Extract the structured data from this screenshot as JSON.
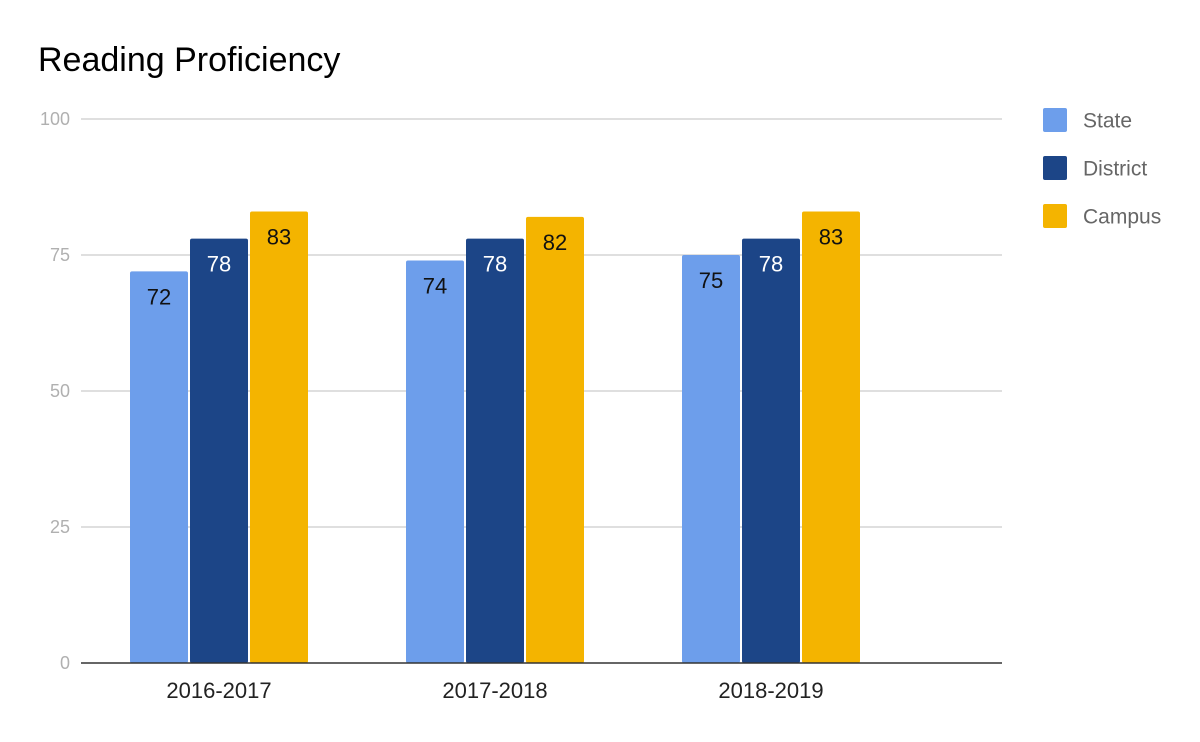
{
  "chart_data": {
    "type": "bar",
    "title": "Reading Proficiency",
    "xlabel": "",
    "ylabel": "",
    "categories": [
      "2016-2017",
      "2017-2018",
      "2018-2019"
    ],
    "series": [
      {
        "name": "State",
        "values": [
          72,
          74,
          75
        ],
        "color": "#6d9eeb",
        "label_color": "#111111"
      },
      {
        "name": "District",
        "values": [
          78,
          78,
          78
        ],
        "color": "#1c4587",
        "label_color": "#ffffff"
      },
      {
        "name": "Campus",
        "values": [
          83,
          82,
          83
        ],
        "color": "#f4b400",
        "label_color": "#111111"
      }
    ],
    "ylim": [
      0,
      100
    ],
    "yticks": [
      "0",
      "25",
      "50",
      "75",
      "100"
    ],
    "grid": true,
    "legend_position": "right",
    "data_labels": true
  }
}
